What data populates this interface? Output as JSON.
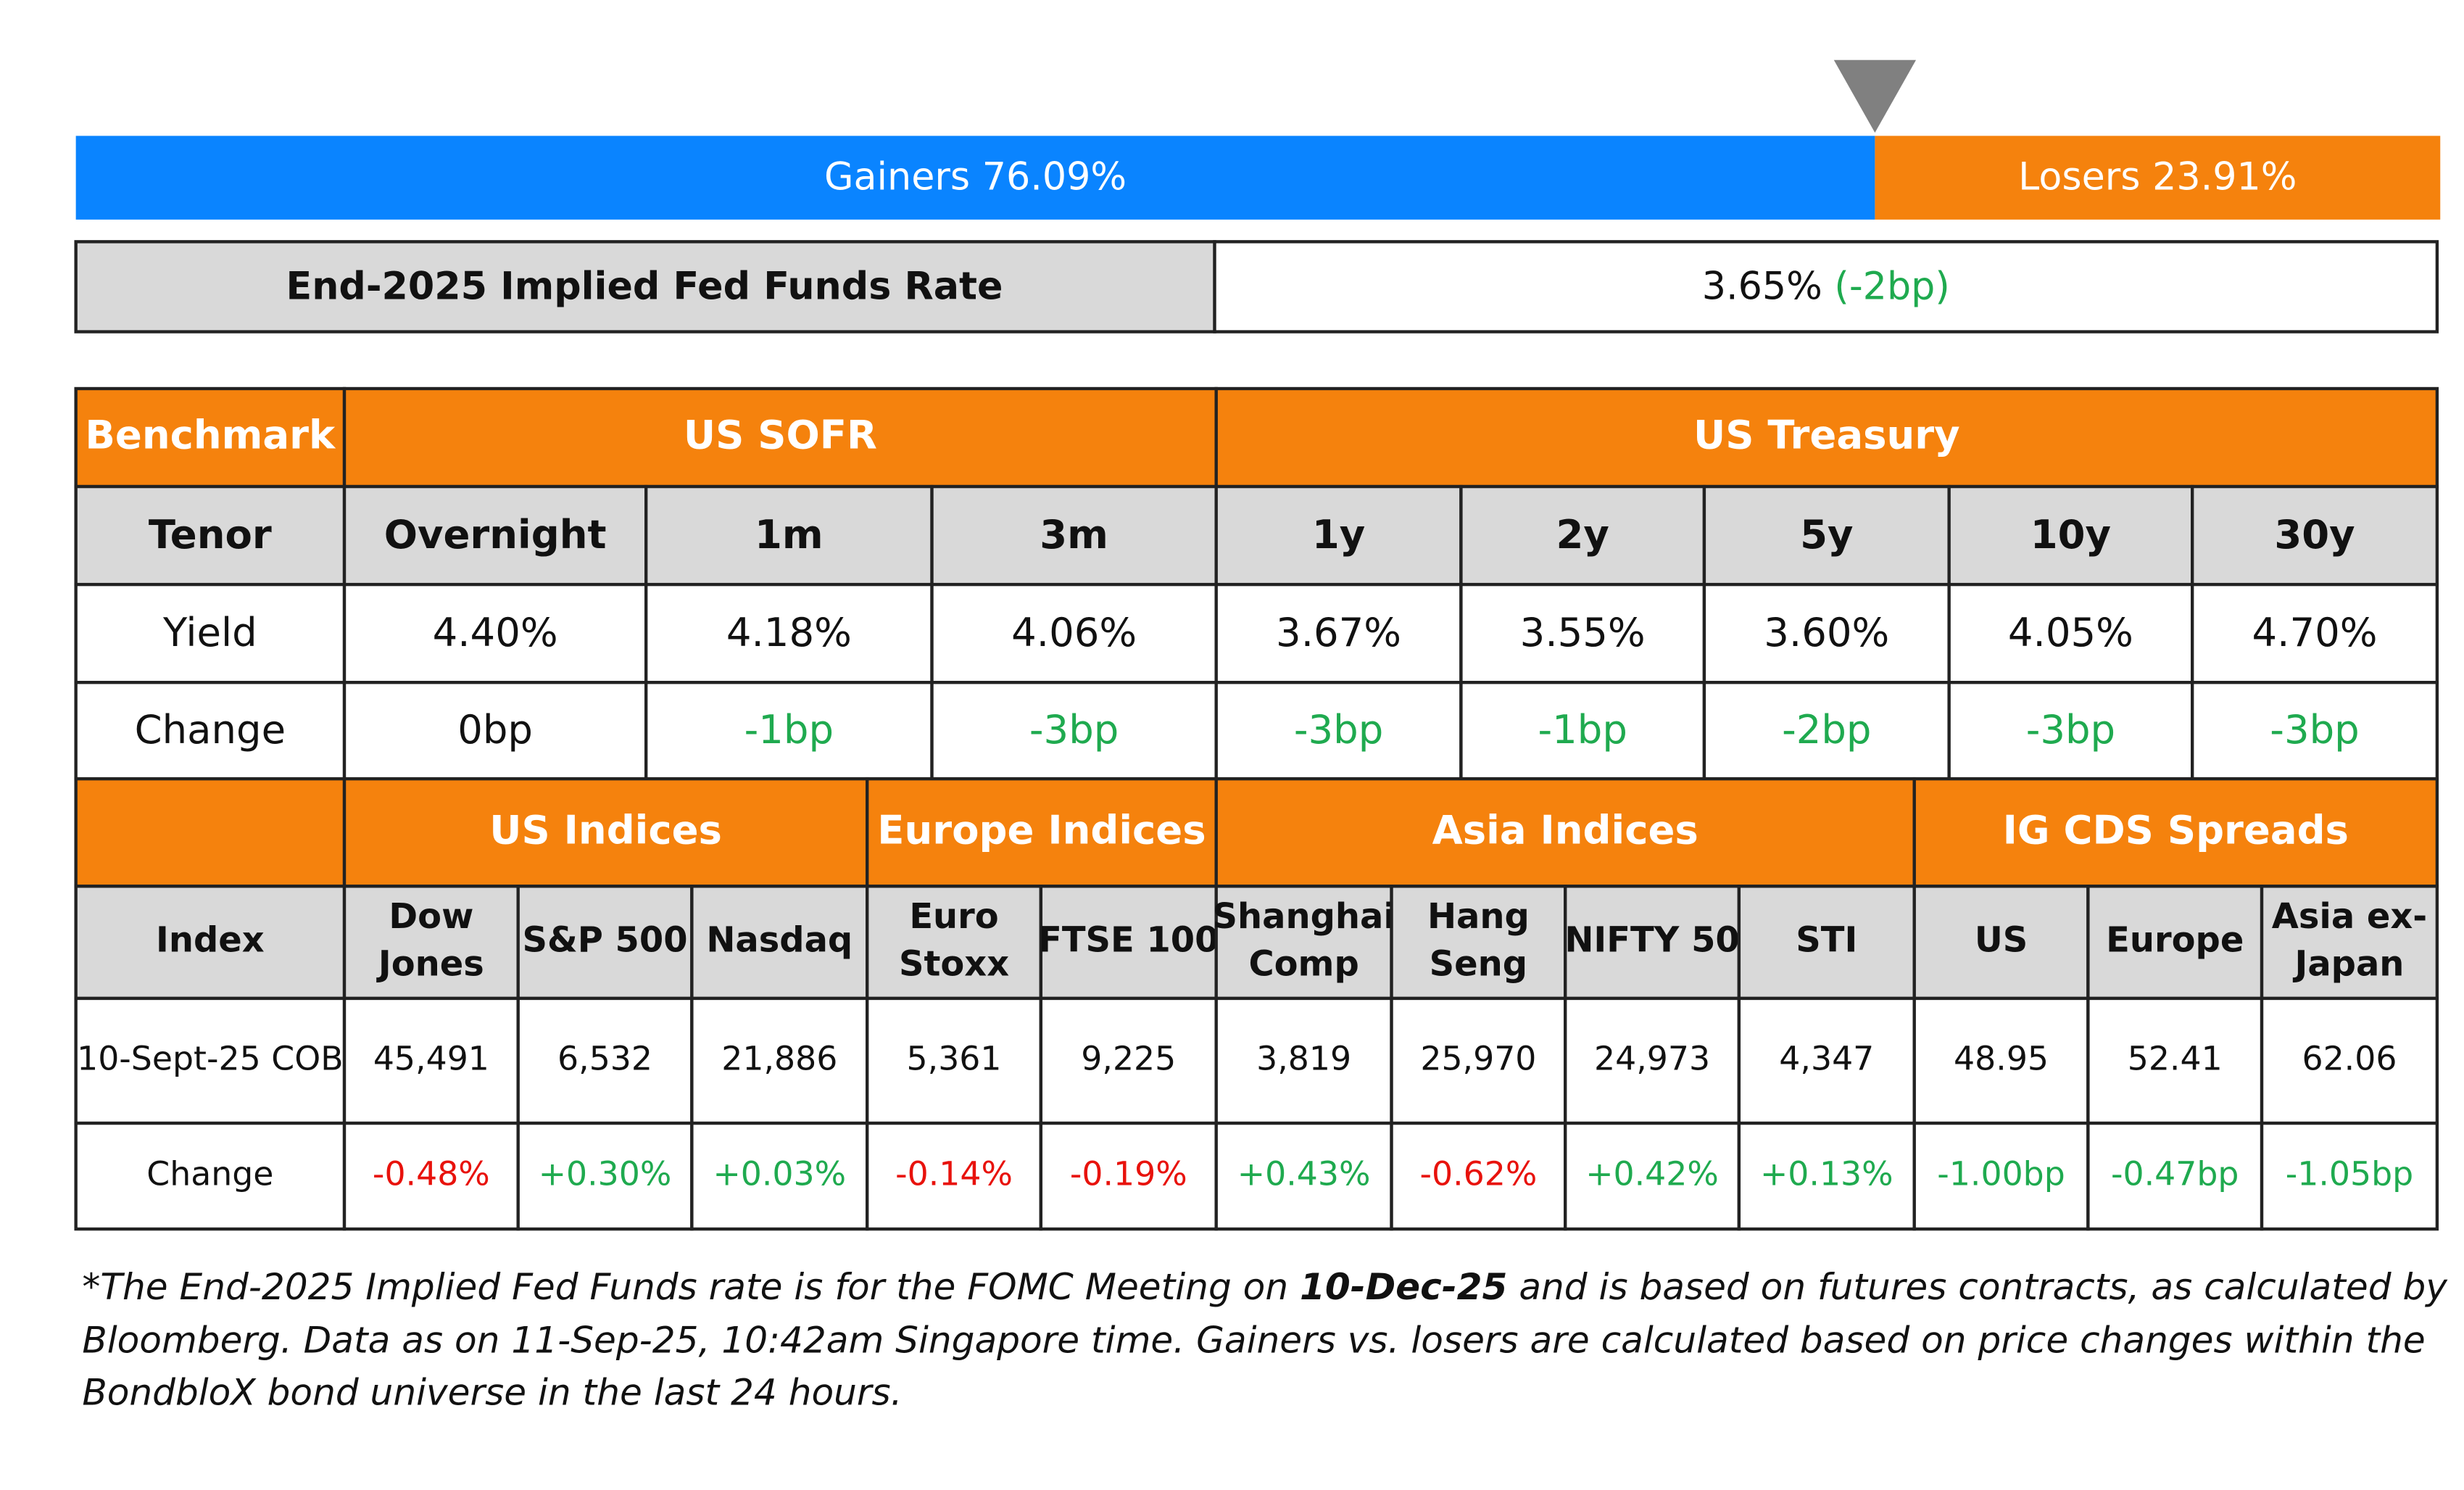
{
  "breadth": {
    "gainers": {
      "label": "Gainers",
      "value": 76.09,
      "value_label": "76.09%",
      "color": "#0a84ff"
    },
    "losers": {
      "label": "Losers",
      "value": 23.91,
      "value_label": "23.91%",
      "color": "#f5820d"
    },
    "marker_color": "#808080"
  },
  "fed_funds": {
    "label": "End-2025 Implied Fed Funds Rate",
    "rate": "3.65%",
    "change": "(-2bp)",
    "change_color": "#1faa4f"
  },
  "rates_table": {
    "header": [
      {
        "text": "Benchmark",
        "span": 1
      },
      {
        "text": "US SOFR",
        "span": 3
      },
      {
        "text": "US Treasury",
        "span": 5
      }
    ],
    "rows": [
      [
        "Tenor",
        "Overnight",
        "1m",
        "3m",
        "1y",
        "2y",
        "5y",
        "10y",
        "30y"
      ],
      [
        "Yield",
        "4.40%",
        "4.18%",
        "4.06%",
        "3.67%",
        "3.55%",
        "3.60%",
        "4.05%",
        "4.70%"
      ],
      [
        "Change",
        "0bp",
        "-1bp",
        "-3bp",
        "-3bp",
        "-1bp",
        "-2bp",
        "-3bp",
        "-3bp"
      ]
    ],
    "change_colors": [
      "#111111",
      "#111111",
      "#1faa4f",
      "#1faa4f",
      "#1faa4f",
      "#1faa4f",
      "#1faa4f",
      "#1faa4f",
      "#1faa4f"
    ]
  },
  "indices_table": {
    "header": [
      {
        "text": null,
        "span": 1
      },
      {
        "text": "US Indices",
        "span": 3
      },
      {
        "text": "Europe Indices",
        "span": 2
      },
      {
        "text": "Asia Indices",
        "span": 4
      },
      {
        "text": "IG CDS Spreads",
        "span": 3
      }
    ],
    "rows": [
      [
        [
          "Index"
        ],
        [
          "Dow",
          "Jones"
        ],
        [
          "S&P 500"
        ],
        [
          "Nasdaq"
        ],
        [
          "Euro",
          "Stoxx"
        ],
        [
          "FTSE 100"
        ],
        [
          "Shanghai",
          "Comp"
        ],
        [
          "Hang",
          "Seng"
        ],
        [
          "NIFTY 50"
        ],
        [
          "STI"
        ],
        [
          "US"
        ],
        [
          "Europe"
        ],
        [
          "Asia ex-",
          "Japan"
        ]
      ],
      [
        [
          "10-Sept-25 COB"
        ],
        [
          "45,491"
        ],
        [
          "6,532"
        ],
        [
          "21,886"
        ],
        [
          "5,361"
        ],
        [
          "9,225"
        ],
        [
          "3,819"
        ],
        [
          "25,970"
        ],
        [
          "24,973"
        ],
        [
          "4,347"
        ],
        [
          "48.95"
        ],
        [
          "52.41"
        ],
        [
          "62.06"
        ]
      ],
      [
        [
          "Change"
        ],
        [
          "-0.48%"
        ],
        [
          "+0.30%"
        ],
        [
          "+0.03%"
        ],
        [
          "-0.14%"
        ],
        [
          "-0.19%"
        ],
        [
          "+0.43%"
        ],
        [
          "-0.62%"
        ],
        [
          "+0.42%"
        ],
        [
          "+0.13%"
        ],
        [
          "-1.00bp"
        ],
        [
          "-0.47bp"
        ],
        [
          "-1.05bp"
        ]
      ]
    ],
    "change_colors": [
      "#111111",
      "#e8120c",
      "#1faa4f",
      "#1faa4f",
      "#e8120c",
      "#e8120c",
      "#1faa4f",
      "#e8120c",
      "#1faa4f",
      "#1faa4f",
      "#1faa4f",
      "#1faa4f",
      "#1faa4f"
    ]
  },
  "footnote": {
    "line1": [
      "*The End-2025 Implied Fed Funds rate is for the FOMC Meeting on",
      "10-Dec-25",
      "and is based on futures contracts, as calculated by"
    ],
    "line2": "Bloomberg. Data as on 11-Sep-25, 10:42am Singapore time. Gainers vs. losers are calculated based on price changes within the",
    "line3": "BondbloX bond universe in the last 24 hours."
  }
}
